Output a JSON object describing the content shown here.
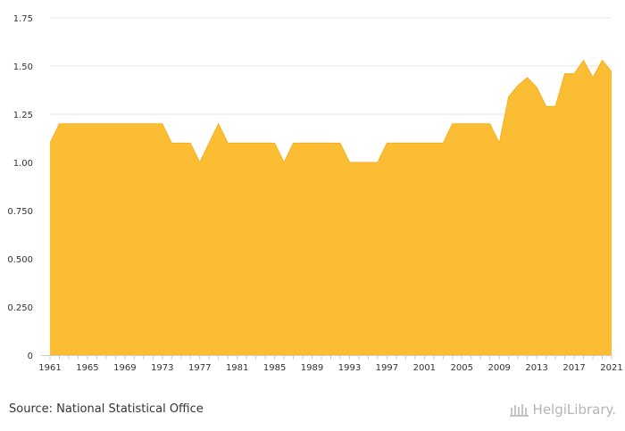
{
  "chart_data": {
    "type": "area",
    "title": "",
    "xlabel": "",
    "ylabel": "",
    "x": [
      1961,
      1962,
      1963,
      1964,
      1965,
      1966,
      1967,
      1968,
      1969,
      1970,
      1971,
      1972,
      1973,
      1974,
      1975,
      1976,
      1977,
      1978,
      1979,
      1980,
      1981,
      1982,
      1983,
      1984,
      1985,
      1986,
      1987,
      1988,
      1989,
      1990,
      1991,
      1992,
      1993,
      1994,
      1995,
      1996,
      1997,
      1998,
      1999,
      2000,
      2001,
      2002,
      2003,
      2004,
      2005,
      2006,
      2007,
      2008,
      2009,
      2010,
      2011,
      2012,
      2013,
      2014,
      2015,
      2016,
      2017,
      2018,
      2019,
      2020,
      2021
    ],
    "values": [
      1.1,
      1.2,
      1.2,
      1.2,
      1.2,
      1.2,
      1.2,
      1.2,
      1.2,
      1.2,
      1.2,
      1.2,
      1.2,
      1.1,
      1.1,
      1.1,
      1.0,
      1.1,
      1.2,
      1.1,
      1.1,
      1.1,
      1.1,
      1.1,
      1.1,
      1.0,
      1.1,
      1.1,
      1.1,
      1.1,
      1.1,
      1.1,
      1.0,
      1.0,
      1.0,
      1.0,
      1.1,
      1.1,
      1.1,
      1.1,
      1.1,
      1.1,
      1.1,
      1.2,
      1.2,
      1.2,
      1.2,
      1.2,
      1.1,
      1.34,
      1.4,
      1.44,
      1.39,
      1.29,
      1.29,
      1.46,
      1.46,
      1.53,
      1.44,
      1.53,
      1.47
    ],
    "x_tick_labels": [
      "1961",
      "1965",
      "1969",
      "1973",
      "1977",
      "1981",
      "1985",
      "1989",
      "1993",
      "1997",
      "2001",
      "2005",
      "2009",
      "2013",
      "2017",
      "2021"
    ],
    "y_tick_labels": [
      "0",
      "0.250",
      "0.500",
      "0.750",
      "1.00",
      "1.25",
      "1.50",
      "1.75"
    ],
    "ylim": [
      0,
      1.75
    ],
    "grid": "horizontal",
    "fill_color": "#fbbd33",
    "stroke_color": "#f5b021"
  },
  "footer": {
    "source": "Source: National Statistical Office",
    "brand": "HelgiLibrary."
  },
  "colors": {
    "text": "#333333",
    "grid": "#e6e6e6",
    "brand": "#b5b5b5"
  }
}
